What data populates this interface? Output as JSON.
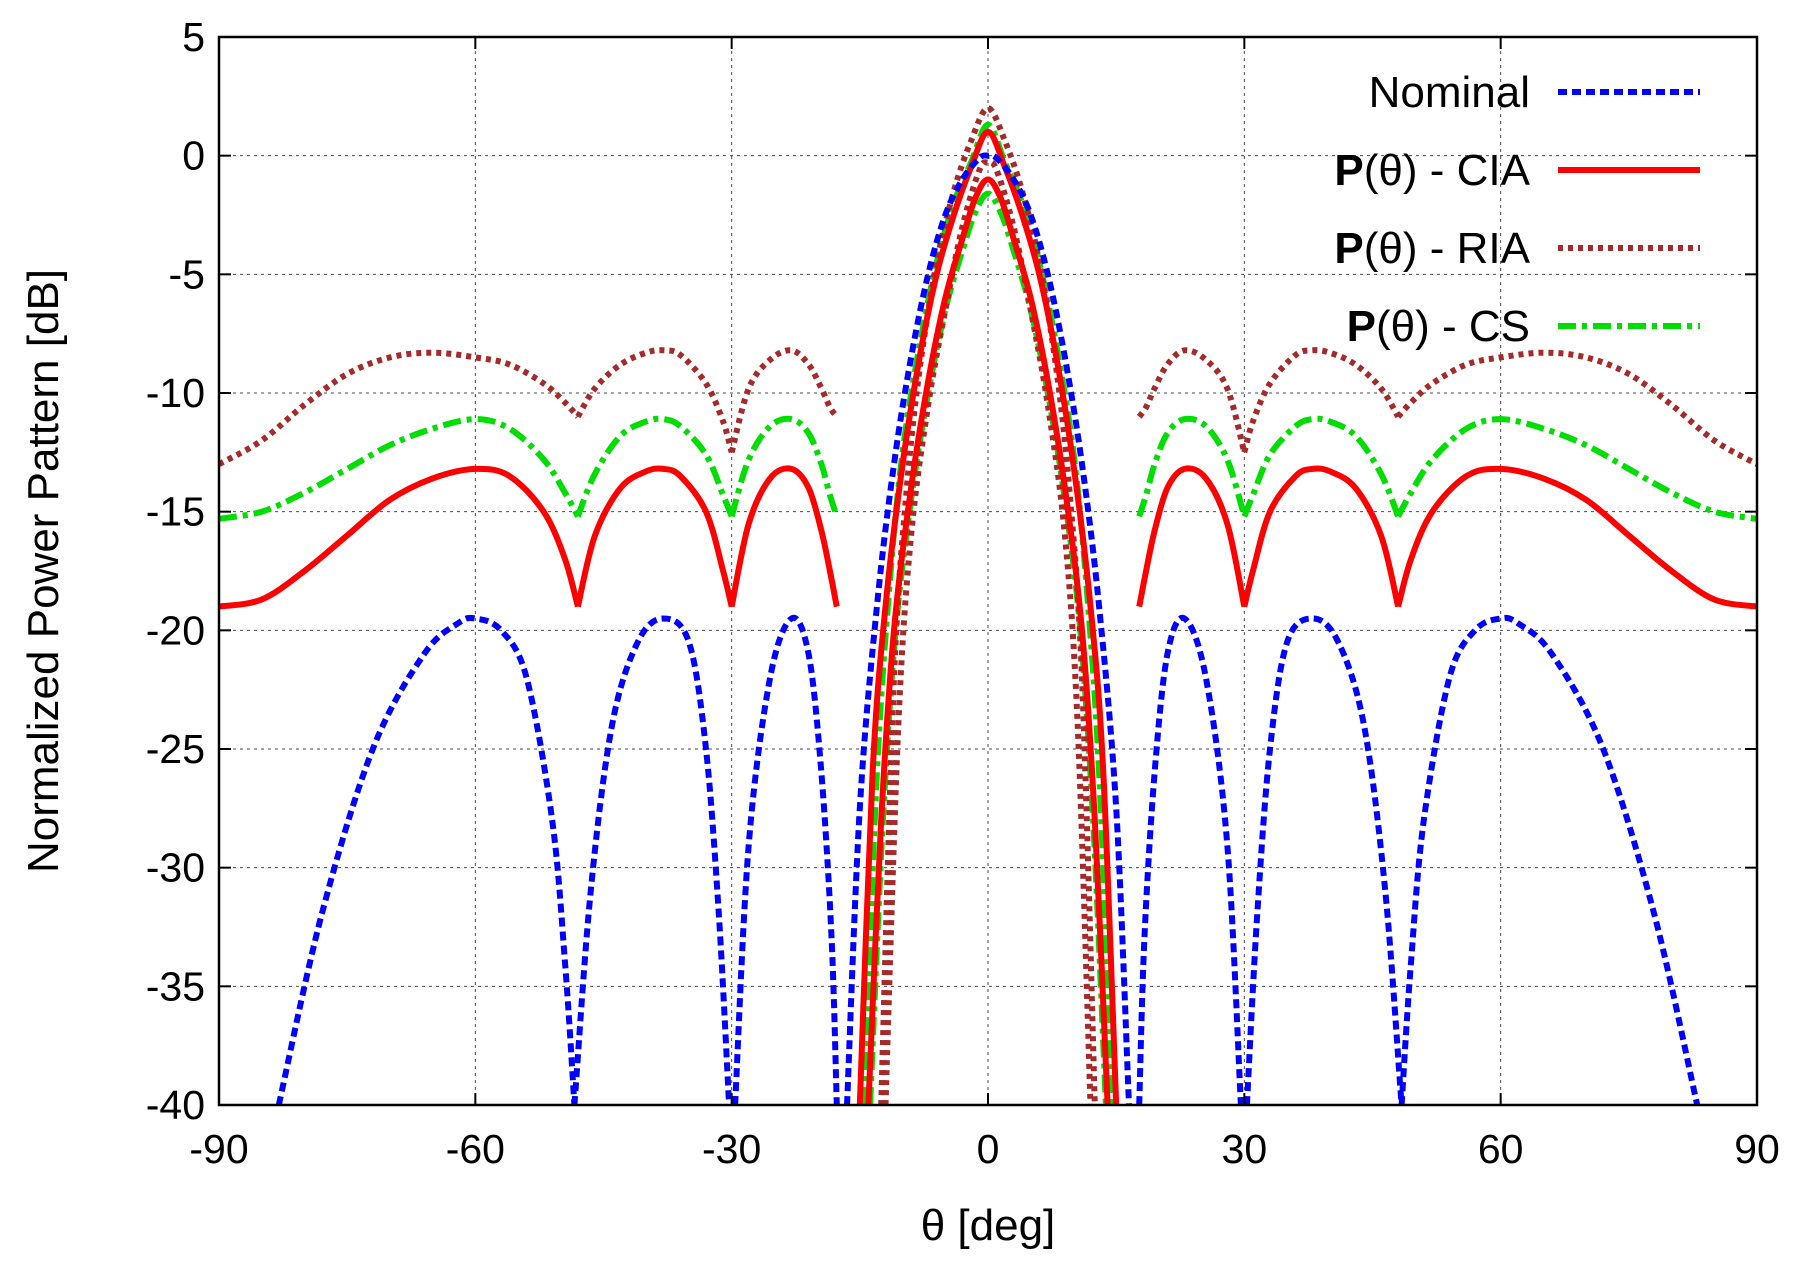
{
  "chart_data": {
    "type": "line",
    "title": "",
    "xlabel": "θ [deg]",
    "ylabel": "Normalized Power Pattern [dB]",
    "xlim": [
      -90,
      90
    ],
    "ylim": [
      -40,
      5
    ],
    "xticks": [
      -90,
      -60,
      -30,
      0,
      30,
      60,
      90
    ],
    "yticks": [
      5,
      0,
      -5,
      -10,
      -15,
      -20,
      -25,
      -30,
      -35,
      -40
    ],
    "grid": true,
    "legend_position": "top-right",
    "series": [
      {
        "name": "Nominal",
        "legend_prefix": "",
        "legend_suffix": "Nominal",
        "color": "#0000ff",
        "style": "dashed",
        "lobes": [
          {
            "x": [
              -83,
              -78,
              -72,
              -66,
              -62,
              -60,
              -57,
              -54,
              -51,
              -49.5,
              -48.4
            ],
            "y": [
              -40,
              -32,
              -25,
              -21,
              -19.7,
              -19.5,
              -20,
              -22,
              -28,
              -34,
              -40
            ]
          },
          {
            "x": [
              -48.4,
              -46.5,
              -44,
              -41,
              -38,
              -35,
              -33,
              -31.5,
              -30.3
            ],
            "y": [
              -40,
              -31,
              -24,
              -20.5,
              -19.5,
              -20.5,
              -25,
              -32,
              -40
            ]
          },
          {
            "x": [
              -29.6,
              -28,
              -25.5,
              -23,
              -21,
              -19.5,
              -18.3,
              -17.7
            ],
            "y": [
              -40,
              -29,
              -22,
              -19.5,
              -21,
              -26,
              -33,
              -40
            ]
          },
          {
            "x": [
              -16.5,
              -15,
              -13,
              -11,
              -9,
              -7,
              -5,
              -3,
              -1,
              0,
              1,
              3,
              5,
              7,
              9,
              11,
              13,
              15,
              16.5
            ],
            "y": [
              -40,
              -27.5,
              -19,
              -13,
              -8.5,
              -5,
              -2.5,
              -1,
              -0.1,
              0,
              -0.1,
              -1,
              -2.5,
              -5,
              -8.5,
              -13,
              -19,
              -27.5,
              -40
            ]
          },
          {
            "x": [
              17.7,
              18.3,
              19.5,
              21,
              23,
              25.5,
              28,
              29.6
            ],
            "y": [
              -40,
              -33,
              -26,
              -21,
              -19.5,
              -22,
              -29,
              -40
            ]
          },
          {
            "x": [
              30.3,
              31.5,
              33,
              35,
              38,
              41,
              44,
              46.5,
              48.4
            ],
            "y": [
              -40,
              -32,
              -25,
              -20.5,
              -19.5,
              -20.5,
              -24,
              -31,
              -40
            ]
          },
          {
            "x": [
              48.4,
              49.5,
              51,
              54,
              57,
              60,
              62,
              66,
              72,
              78,
              83
            ],
            "y": [
              -40,
              -34,
              -28,
              -22,
              -20,
              -19.5,
              -19.7,
              -21,
              -25,
              -32,
              -40
            ]
          }
        ]
      },
      {
        "name": "CIA",
        "legend_prefix": "P",
        "legend_suffix": "(θ) - CIA",
        "color": "#ff0000",
        "style": "solid",
        "lobes": [
          {
            "x": [
              -90,
              -85,
              -80,
              -75,
              -70,
              -65,
              -60,
              -56,
              -52,
              -49.5,
              -48
            ],
            "y": [
              -19,
              -18.7,
              -17.5,
              -16,
              -14.5,
              -13.6,
              -13.2,
              -13.5,
              -15,
              -17,
              -19
            ]
          },
          {
            "x": [
              -48,
              -46,
              -43,
              -40,
              -38,
              -36,
              -33,
              -31,
              -30
            ],
            "y": [
              -19,
              -16,
              -14,
              -13.3,
              -13.2,
              -13.5,
              -15,
              -17.5,
              -19
            ]
          },
          {
            "x": [
              -30,
              -28,
              -25.5,
              -23,
              -21,
              -19.5,
              -18.5,
              -17.7
            ],
            "y": [
              -19,
              -15.5,
              -13.6,
              -13.2,
              -14,
              -15.8,
              -17.5,
              -19
            ]
          },
          {
            "x": [
              -15,
              -13.5,
              -12,
              -10,
              -8,
              -6,
              -4,
              -2,
              0,
              2,
              4,
              6,
              8,
              10,
              12,
              13.5,
              15
            ],
            "y": [
              -40,
              -26,
              -19,
              -13,
              -8.5,
              -5,
              -2.5,
              -0.5,
              1,
              -0.5,
              -2.5,
              -5,
              -8.5,
              -13,
              -19,
              -26,
              -40
            ]
          },
          {
            "x": [
              -14,
              -12.5,
              -11,
              -9,
              -7,
              -5,
              -3,
              -1.5,
              0,
              1.5,
              3,
              5,
              7,
              9,
              11,
              12.5,
              14
            ],
            "y": [
              -40,
              -28,
              -20,
              -14,
              -9.5,
              -6,
              -3.5,
              -1.8,
              -1,
              -1.8,
              -3.5,
              -6,
              -9.5,
              -14,
              -20,
              -28,
              -40
            ]
          },
          {
            "x": [
              17.7,
              18.5,
              19.5,
              21,
              23,
              25.5,
              28,
              30
            ],
            "y": [
              -19,
              -17.5,
              -15.8,
              -14,
              -13.2,
              -13.6,
              -15.5,
              -19
            ]
          },
          {
            "x": [
              30,
              31,
              33,
              36,
              38,
              40,
              43,
              46,
              48
            ],
            "y": [
              -19,
              -17.5,
              -15,
              -13.5,
              -13.2,
              -13.3,
              -14,
              -16,
              -19
            ]
          },
          {
            "x": [
              48,
              49.5,
              52,
              56,
              60,
              65,
              70,
              75,
              80,
              85,
              90
            ],
            "y": [
              -19,
              -17,
              -15,
              -13.5,
              -13.2,
              -13.6,
              -14.5,
              -16,
              -17.5,
              -18.7,
              -19
            ]
          }
        ]
      },
      {
        "name": "RIA",
        "legend_prefix": "P",
        "legend_suffix": "(θ) - RIA",
        "color": "#a52a2a",
        "style": "dotted",
        "lobes": [
          {
            "x": [
              -90,
              -85,
              -80,
              -75,
              -70,
              -65,
              -60,
              -56,
              -52,
              -49.5,
              -48
            ],
            "y": [
              -13,
              -12,
              -10.5,
              -9.2,
              -8.5,
              -8.3,
              -8.5,
              -8.8,
              -9.6,
              -10.4,
              -11
            ]
          },
          {
            "x": [
              -48,
              -46,
              -43,
              -40,
              -38,
              -36,
              -33,
              -31,
              -30
            ],
            "y": [
              -11,
              -9.8,
              -8.8,
              -8.3,
              -8.2,
              -8.4,
              -9.6,
              -11.2,
              -12.5
            ]
          },
          {
            "x": [
              -30,
              -28,
              -25.5,
              -23,
              -21,
              -19.5,
              -18.5,
              -17.7
            ],
            "y": [
              -12.5,
              -9.8,
              -8.6,
              -8.2,
              -8.8,
              -9.8,
              -10.6,
              -11
            ]
          },
          {
            "x": [
              -12.5,
              -11,
              -9.5,
              -8,
              -6,
              -4,
              -2,
              0,
              2,
              4,
              6,
              8,
              9.5,
              11,
              12.5
            ],
            "y": [
              -40,
              -22,
              -14,
              -9,
              -4.5,
              -1.5,
              0.6,
              2,
              0.6,
              -1.5,
              -4.5,
              -9,
              -14,
              -22,
              -40
            ]
          },
          {
            "x": [
              -12,
              -10.5,
              -9,
              -7,
              -5,
              -3,
              -1,
              0,
              1,
              3,
              5,
              7,
              9,
              10.5,
              12
            ],
            "y": [
              -40,
              -24,
              -16,
              -10.5,
              -6.5,
              -3,
              -0.6,
              -0.3,
              -0.6,
              -3,
              -6.5,
              -10.5,
              -16,
              -24,
              -40
            ]
          },
          {
            "x": [
              17.7,
              18.5,
              19.5,
              21,
              23,
              25.5,
              28,
              30
            ],
            "y": [
              -11,
              -10.6,
              -9.8,
              -8.8,
              -8.2,
              -8.6,
              -9.8,
              -12.5
            ]
          },
          {
            "x": [
              30,
              31,
              33,
              36,
              38,
              40,
              43,
              46,
              48
            ],
            "y": [
              -12.5,
              -11.2,
              -9.6,
              -8.4,
              -8.2,
              -8.3,
              -8.8,
              -9.8,
              -11
            ]
          },
          {
            "x": [
              48,
              49.5,
              52,
              56,
              60,
              65,
              70,
              75,
              80,
              85,
              90
            ],
            "y": [
              -11,
              -10.4,
              -9.6,
              -8.8,
              -8.5,
              -8.3,
              -8.5,
              -9.2,
              -10.5,
              -12,
              -13
            ]
          }
        ]
      },
      {
        "name": "CS",
        "legend_prefix": "P",
        "legend_suffix": "(θ) - CS",
        "color": "#00dd00",
        "style": "dashdot",
        "lobes": [
          {
            "x": [
              -90,
              -85,
              -80,
              -75,
              -70,
              -65,
              -60,
              -56,
              -52,
              -49.5,
              -48
            ],
            "y": [
              -15.3,
              -15,
              -14.2,
              -13.2,
              -12.2,
              -11.5,
              -11.1,
              -11.5,
              -12.8,
              -14.2,
              -15.2
            ]
          },
          {
            "x": [
              -48,
              -46,
              -43,
              -40,
              -38,
              -36,
              -33,
              -31,
              -30
            ],
            "y": [
              -15.2,
              -13.4,
              -11.8,
              -11.2,
              -11.1,
              -11.4,
              -12.6,
              -14.3,
              -15.2
            ]
          },
          {
            "x": [
              -30,
              -28,
              -25.5,
              -23,
              -21,
              -19.5,
              -18.5,
              -17.7
            ],
            "y": [
              -15.2,
              -12.8,
              -11.4,
              -11.1,
              -11.7,
              -13,
              -14.3,
              -15.2
            ]
          },
          {
            "x": [
              -14.5,
              -13,
              -11.5,
              -10,
              -8,
              -6,
              -4,
              -2,
              0,
              2,
              4,
              6,
              8,
              10,
              11.5,
              13,
              14.5
            ],
            "y": [
              -40,
              -26,
              -18,
              -12.5,
              -8,
              -4.5,
              -2,
              -0.3,
              1.3,
              -0.3,
              -2,
              -4.5,
              -8,
              -12.5,
              -18,
              -26,
              -40
            ]
          },
          {
            "x": [
              -13.8,
              -12.3,
              -10.8,
              -9,
              -7,
              -5,
              -3,
              -1.5,
              0,
              1.5,
              3,
              5,
              7,
              9,
              10.8,
              12.3,
              13.8
            ],
            "y": [
              -40,
              -28,
              -20,
              -14.5,
              -10,
              -6.5,
              -4,
              -2.4,
              -1.6,
              -2.4,
              -4,
              -6.5,
              -10,
              -14.5,
              -20,
              -28,
              -40
            ]
          },
          {
            "x": [
              17.7,
              18.5,
              19.5,
              21,
              23,
              25.5,
              28,
              30
            ],
            "y": [
              -15.2,
              -14.3,
              -13,
              -11.7,
              -11.1,
              -11.4,
              -12.8,
              -15.2
            ]
          },
          {
            "x": [
              30,
              31,
              33,
              36,
              38,
              40,
              43,
              46,
              48
            ],
            "y": [
              -15.2,
              -14.3,
              -12.6,
              -11.4,
              -11.1,
              -11.2,
              -11.8,
              -13.4,
              -15.2
            ]
          },
          {
            "x": [
              48,
              49.5,
              52,
              56,
              60,
              65,
              70,
              75,
              80,
              85,
              90
            ],
            "y": [
              -15.2,
              -14.2,
              -12.8,
              -11.5,
              -11.1,
              -11.5,
              -12.2,
              -13.2,
              -14.2,
              -15,
              -15.3
            ]
          }
        ]
      }
    ]
  }
}
